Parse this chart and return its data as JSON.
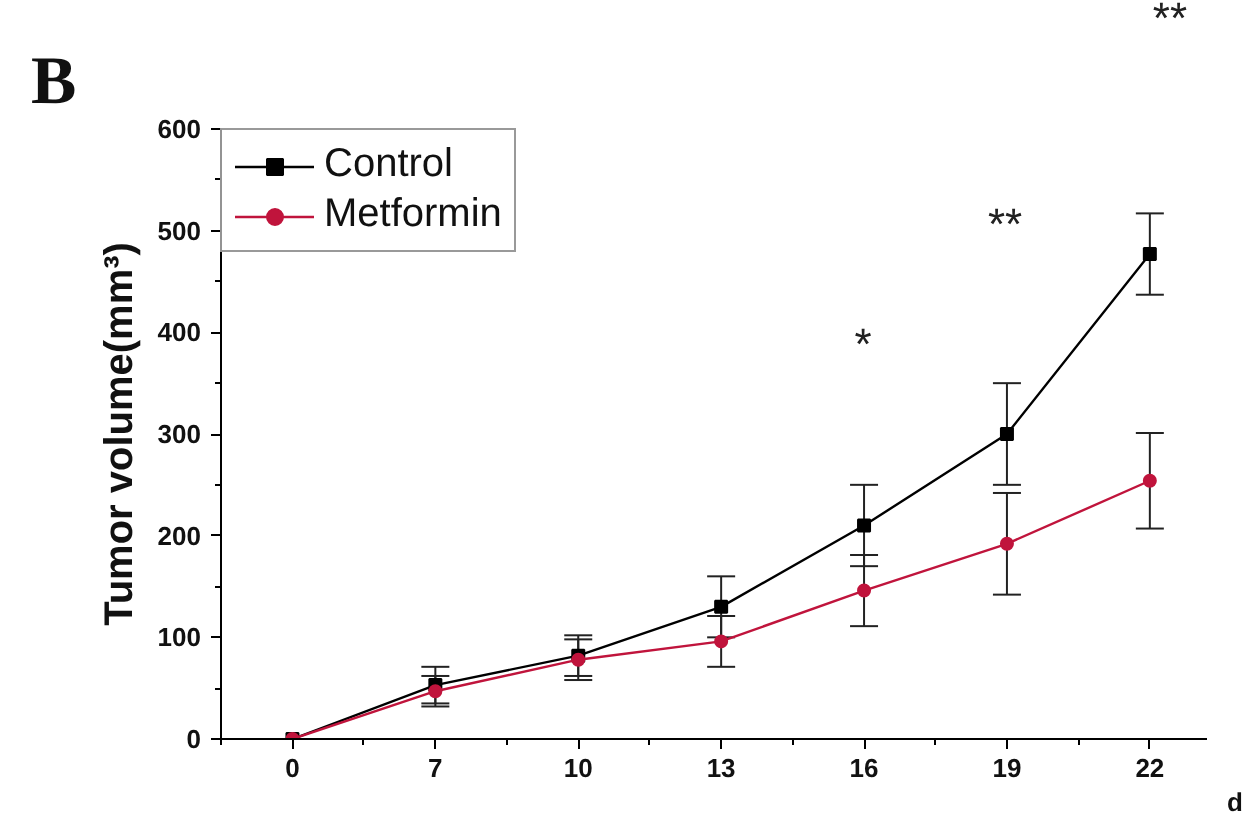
{
  "chart_data": {
    "type": "line",
    "ylabel": "Tumor volume(mm³)",
    "xlabel": "d",
    "categories": [
      "0",
      "7",
      "10",
      "13",
      "16",
      "19",
      "22"
    ],
    "series": [
      {
        "name": "Control",
        "color": "#000000",
        "marker": "square",
        "values": [
          0,
          53,
          82,
          130,
          210,
          300,
          477
        ],
        "errors": [
          null,
          18,
          20,
          30,
          40,
          50,
          40
        ]
      },
      {
        "name": "Metformin",
        "color": "#c0143c",
        "marker": "circle",
        "values": [
          0,
          47,
          78,
          96,
          146,
          192,
          254
        ],
        "errors": [
          null,
          15,
          20,
          25,
          35,
          50,
          47
        ]
      }
    ],
    "ylim": [
      0,
      600
    ],
    "yticks": [
      0,
      100,
      200,
      300,
      400,
      500,
      600
    ],
    "grid": false,
    "legend": "top left",
    "line_style": "solid",
    "annotations": [
      "B",
      "*",
      "**",
      "**"
    ]
  }
}
